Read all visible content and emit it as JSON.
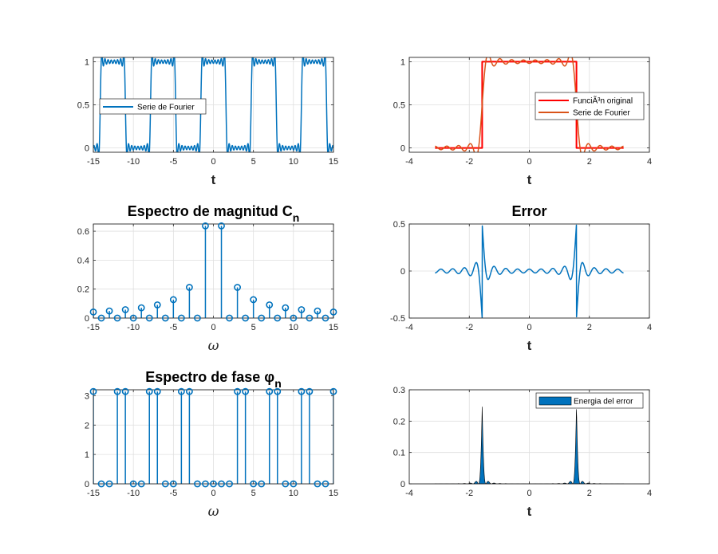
{
  "colors": {
    "blue": "#0072BD",
    "red": "#FF0000",
    "orange": "#D95319",
    "axis": "#262626",
    "grid": "#DFDFDF"
  },
  "chart_data": [
    {
      "type": "line",
      "title": "",
      "xlabel": "t",
      "ylabel": "",
      "xlim": [
        -15,
        15
      ],
      "ylim": [
        -0.05,
        1.05
      ],
      "xticks": [
        "-15",
        "-10",
        "-5",
        "0",
        "5",
        "10",
        "15"
      ],
      "yticks": [
        "0",
        "0.5",
        "1"
      ],
      "grid": true,
      "legend_position": "middle-left",
      "legend": [
        "Serie de Fourier"
      ],
      "series": [
        {
          "name": "Serie de Fourier",
          "description_period": 2
        }
      ],
      "signal": {
        "period": 6.283,
        "high_interval": [
          -1.5708,
          1.5708
        ],
        "harmonics": 15
      }
    },
    {
      "type": "line",
      "title": "",
      "xlabel": "t",
      "ylabel": "",
      "xlim": [
        -4,
        4
      ],
      "ylim": [
        -0.05,
        1.05
      ],
      "xticks": [
        "-4",
        "-2",
        "0",
        "2",
        "4"
      ],
      "yticks": [
        "0",
        "0.5",
        "1"
      ],
      "grid": true,
      "legend_position": "middle-right",
      "legend": [
        "FunciÃ³n original",
        "Serie de Fourier"
      ],
      "series": [
        {
          "name": "FunciÃ³n original",
          "x": [
            -3.1416,
            -1.5708,
            -1.5708,
            1.5708,
            1.5708,
            3.1416
          ],
          "y": [
            0,
            0,
            1,
            1,
            0,
            0
          ]
        },
        {
          "name": "Serie de Fourier"
        }
      ]
    },
    {
      "type": "stem",
      "title": "Espectro de magnitud C",
      "title_sub": "n",
      "xlabel": "ω",
      "ylabel": "",
      "xlim": [
        -15,
        15
      ],
      "ylim": [
        0,
        0.65
      ],
      "xticks": [
        "-15",
        "-10",
        "-5",
        "0",
        "5",
        "10",
        "15"
      ],
      "yticks": [
        "0",
        "0.2",
        "0.4",
        "0.6"
      ],
      "grid": true,
      "x": [
        -15,
        -14,
        -13,
        -12,
        -11,
        -10,
        -9,
        -8,
        -7,
        -6,
        -5,
        -4,
        -3,
        -2,
        -1,
        1,
        2,
        3,
        4,
        5,
        6,
        7,
        8,
        9,
        10,
        11,
        12,
        13,
        14,
        15
      ],
      "values": [
        0.042,
        0,
        0.049,
        0,
        0.058,
        0,
        0.071,
        0,
        0.091,
        0,
        0.127,
        0,
        0.212,
        0,
        0.637,
        0.637,
        0,
        0.212,
        0,
        0.127,
        0,
        0.091,
        0,
        0.071,
        0,
        0.058,
        0,
        0.049,
        0,
        0.042
      ]
    },
    {
      "type": "line",
      "title": "Error",
      "xlabel": "t",
      "ylabel": "",
      "xlim": [
        -4,
        4
      ],
      "ylim": [
        -0.5,
        0.5
      ],
      "xticks": [
        "-4",
        "-2",
        "0",
        "2",
        "4"
      ],
      "yticks": [
        "-0.5",
        "0",
        "0.5"
      ],
      "grid": true
    },
    {
      "type": "stem",
      "title": "Espectro de fase φ",
      "title_sub": "n",
      "xlabel": "ω",
      "ylabel": "",
      "xlim": [
        -15,
        15
      ],
      "ylim": [
        0,
        3.2
      ],
      "xticks": [
        "-15",
        "-10",
        "-5",
        "0",
        "5",
        "10",
        "15"
      ],
      "yticks": [
        "0",
        "1",
        "2",
        "3"
      ],
      "grid": true,
      "x": [
        -15,
        -14,
        -13,
        -12,
        -11,
        -10,
        -9,
        -8,
        -7,
        -6,
        -5,
        -4,
        -3,
        -2,
        -1,
        0,
        1,
        2,
        3,
        4,
        5,
        6,
        7,
        8,
        9,
        10,
        11,
        12,
        13,
        14,
        15
      ],
      "values": [
        3.1416,
        0,
        0,
        3.1416,
        3.1416,
        0,
        0,
        3.1416,
        3.1416,
        0,
        0,
        3.1416,
        3.1416,
        0,
        0,
        0,
        0,
        0,
        3.1416,
        3.1416,
        0,
        0,
        3.1416,
        3.1416,
        0,
        0,
        3.1416,
        3.1416,
        0,
        0,
        3.1416
      ]
    },
    {
      "type": "area",
      "title": "",
      "xlabel": "t",
      "ylabel": "",
      "xlim": [
        -4,
        4
      ],
      "ylim": [
        0,
        0.3
      ],
      "xticks": [
        "-4",
        "-2",
        "0",
        "2",
        "4"
      ],
      "yticks": [
        "0",
        "0.1",
        "0.2",
        "0.3"
      ],
      "grid": true,
      "legend_position": "top-right",
      "legend": [
        "Energia del error"
      ]
    }
  ]
}
